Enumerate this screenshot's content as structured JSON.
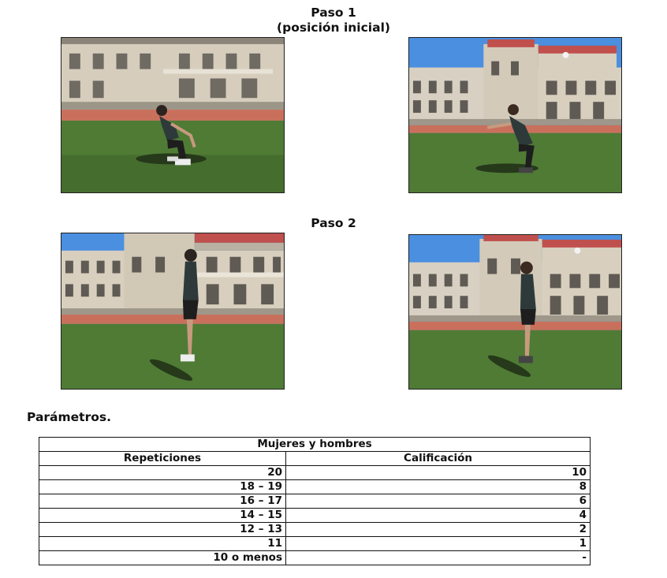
{
  "step1": {
    "line1": "Paso 1",
    "line2": "(posición inicial)"
  },
  "step2": {
    "title": "Paso 2"
  },
  "photos": [
    {
      "name": "woman-squat-photo"
    },
    {
      "name": "man-squat-photo"
    },
    {
      "name": "woman-jump-photo"
    },
    {
      "name": "man-jump-photo"
    }
  ],
  "params_title": "Parámetros.",
  "table": {
    "group_header": "Mujeres y hombres",
    "col1": "Repeticiones",
    "col2": "Calificación",
    "rows": [
      {
        "reps": "20",
        "score": "10"
      },
      {
        "reps": "18 – 19",
        "score": "8"
      },
      {
        "reps": "16 – 17",
        "score": "6"
      },
      {
        "reps": "14 – 15",
        "score": "4"
      },
      {
        "reps": "12 – 13",
        "score": "2"
      },
      {
        "reps": "11",
        "score": "1"
      },
      {
        "reps": "10 o menos",
        "score": "-"
      }
    ]
  },
  "colors": {
    "sky": "#4a90e2",
    "building": "#d9cfc0",
    "roof": "#c0504d",
    "track": "#c9705c",
    "grass": "#4e7a34"
  }
}
